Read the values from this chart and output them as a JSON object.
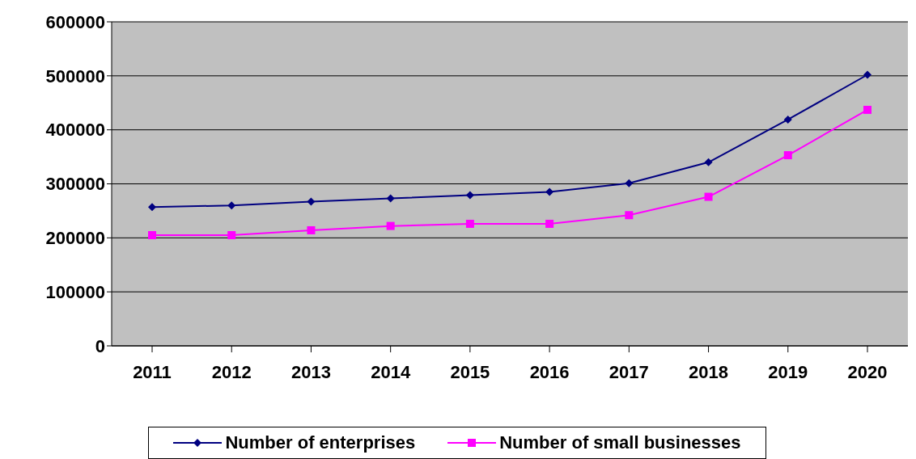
{
  "chart_data": {
    "type": "line",
    "categories": [
      "2011",
      "2012",
      "2013",
      "2014",
      "2015",
      "2016",
      "2017",
      "2018",
      "2019",
      "2020"
    ],
    "series": [
      {
        "name": "Number of enterprises",
        "color": "#000080",
        "marker": "diamond",
        "values": [
          257000,
          260000,
          267000,
          273000,
          279000,
          285000,
          301000,
          340000,
          419000,
          502000
        ]
      },
      {
        "name": "Number of small businesses",
        "color": "#ff00ff",
        "marker": "square",
        "values": [
          205000,
          205000,
          214000,
          222000,
          226000,
          226000,
          242000,
          276000,
          353000,
          437000
        ]
      }
    ],
    "ylim": [
      0,
      600000
    ],
    "yticks": [
      0,
      100000,
      200000,
      300000,
      400000,
      500000,
      600000
    ],
    "grid": "y",
    "legend": "bottom"
  }
}
